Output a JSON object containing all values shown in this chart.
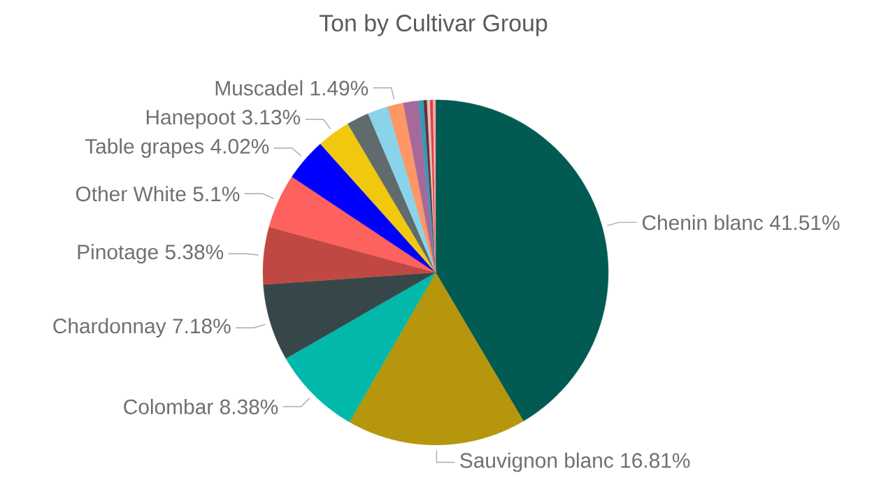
{
  "chart_data": {
    "type": "pie",
    "title": "Ton by Cultivar Group",
    "categories": [
      "Chenin blanc",
      "Sauvignon blanc",
      "Colombar",
      "Chardonnay",
      "Pinotage",
      "Other White",
      "Table grapes",
      "Hanepoot",
      null,
      null,
      "Muscadel",
      null,
      null,
      null,
      null,
      null,
      null
    ],
    "values": [
      41.51,
      16.81,
      8.38,
      7.18,
      5.38,
      5.1,
      4.02,
      3.13,
      2.1,
      1.9,
      1.49,
      1.4,
      0.5,
      0.3,
      0.3,
      0.25,
      0.25
    ],
    "value_labels": [
      "41.51%",
      "16.81%",
      "8.38%",
      "7.18%",
      "5.38%",
      "5.1%",
      "4.02%",
      "3.13%",
      null,
      null,
      "1.49%",
      null,
      null,
      null,
      null,
      null,
      null
    ],
    "colors": [
      "#015B52",
      "#B5960C",
      "#01B8AA",
      "#374649",
      "#BF4942",
      "#FD625E",
      "#0000FF",
      "#F2C80F",
      "#5F6B6D",
      "#8AD4EB",
      "#FE9666",
      "#A66999",
      "#3599B8",
      "#6B2C2C",
      "#DFBFBF",
      "#E8383D",
      "#F4A6A6"
    ]
  }
}
